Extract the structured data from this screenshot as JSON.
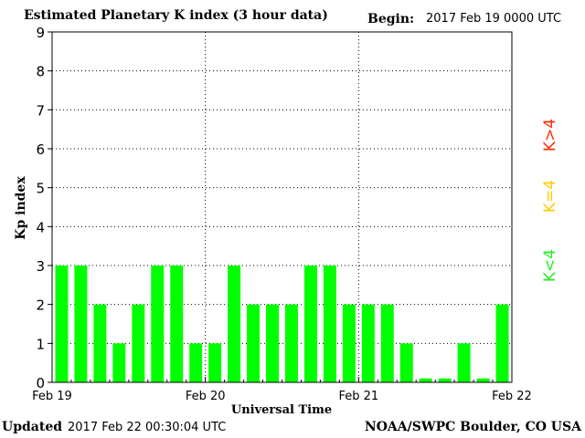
{
  "header": {
    "title": "Estimated Planetary K index (3 hour data)",
    "begin_label": "Begin:",
    "begin_value": "2017 Feb 19 0000 UTC"
  },
  "footer": {
    "updated_label": "Updated",
    "updated_value": "2017 Feb 22 00:30:04 UTC",
    "credit": "NOAA/SWPC Boulder, CO USA"
  },
  "legend": {
    "high": {
      "label": "K>4",
      "color": "#ff2a00"
    },
    "equal": {
      "label": "K=4",
      "color": "#ffcc00"
    },
    "low": {
      "label": "K<4",
      "color": "#22ee22"
    }
  },
  "chart_data": {
    "type": "bar",
    "title": "Estimated Planetary K index (3 hour data)",
    "xlabel": "Universal Time",
    "ylabel": "Kp index",
    "ylim": [
      0,
      9
    ],
    "yticks": [
      0,
      1,
      2,
      3,
      4,
      5,
      6,
      7,
      8,
      9
    ],
    "xtick_labels": [
      "Feb 19",
      "Feb 20",
      "Feb 21",
      "Feb 22"
    ],
    "bars_per_day": 8,
    "grid": "dotted",
    "bar_color": "#00ff00",
    "values": [
      3,
      3,
      2,
      1,
      2,
      3,
      3,
      1,
      1,
      3,
      2,
      2,
      2,
      3,
      3,
      2,
      2,
      2,
      1,
      0.1,
      0.1,
      1,
      0.1,
      2
    ]
  }
}
